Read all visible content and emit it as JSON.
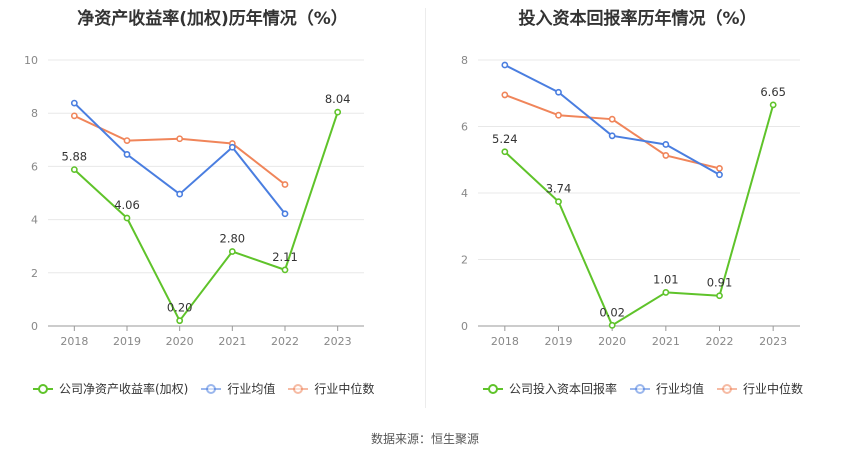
{
  "source": "数据来源：恒生聚源",
  "chart_data": [
    {
      "type": "line",
      "title": "净资产收益率(加权)历年情况（%）",
      "categories": [
        "2018",
        "2019",
        "2020",
        "2021",
        "2022",
        "2023"
      ],
      "ylim": [
        0,
        10
      ],
      "yticks": [
        0,
        2,
        4,
        6,
        8,
        10
      ],
      "grid": true,
      "legend_position": "bottom",
      "series": [
        {
          "name": "公司净资产收益率(加权)",
          "color": "#5fc32a",
          "values": [
            5.88,
            4.06,
            0.2,
            2.8,
            2.11,
            8.04
          ],
          "labels": [
            "5.88",
            "4.06",
            "0.20",
            "2.80",
            "2.11",
            "8.04"
          ]
        },
        {
          "name": "行业均值",
          "color": "#4a7ee0",
          "values": [
            8.38,
            6.45,
            4.96,
            6.72,
            4.22,
            null
          ],
          "labels": []
        },
        {
          "name": "行业中位数",
          "color": "#f0855a",
          "values": [
            7.9,
            6.97,
            7.04,
            6.86,
            5.32,
            null
          ],
          "labels": []
        }
      ]
    },
    {
      "type": "line",
      "title": "投入资本回报率历年情况（%）",
      "categories": [
        "2018",
        "2019",
        "2020",
        "2021",
        "2022",
        "2023"
      ],
      "ylim": [
        0,
        8
      ],
      "yticks": [
        0,
        2,
        4,
        6,
        8
      ],
      "grid": true,
      "legend_position": "bottom",
      "series": [
        {
          "name": "公司投入资本回报率",
          "color": "#5fc32a",
          "values": [
            5.24,
            3.74,
            0.02,
            1.01,
            0.91,
            6.65
          ],
          "labels": [
            "5.24",
            "3.74",
            "0.02",
            "1.01",
            "0.91",
            "6.65"
          ]
        },
        {
          "name": "行业均值",
          "color": "#4a7ee0",
          "values": [
            7.85,
            7.03,
            5.72,
            5.46,
            4.55,
            null
          ],
          "labels": []
        },
        {
          "name": "行业中位数",
          "color": "#f0855a",
          "values": [
            6.95,
            6.34,
            6.22,
            5.13,
            4.74,
            null
          ],
          "labels": []
        }
      ]
    }
  ]
}
